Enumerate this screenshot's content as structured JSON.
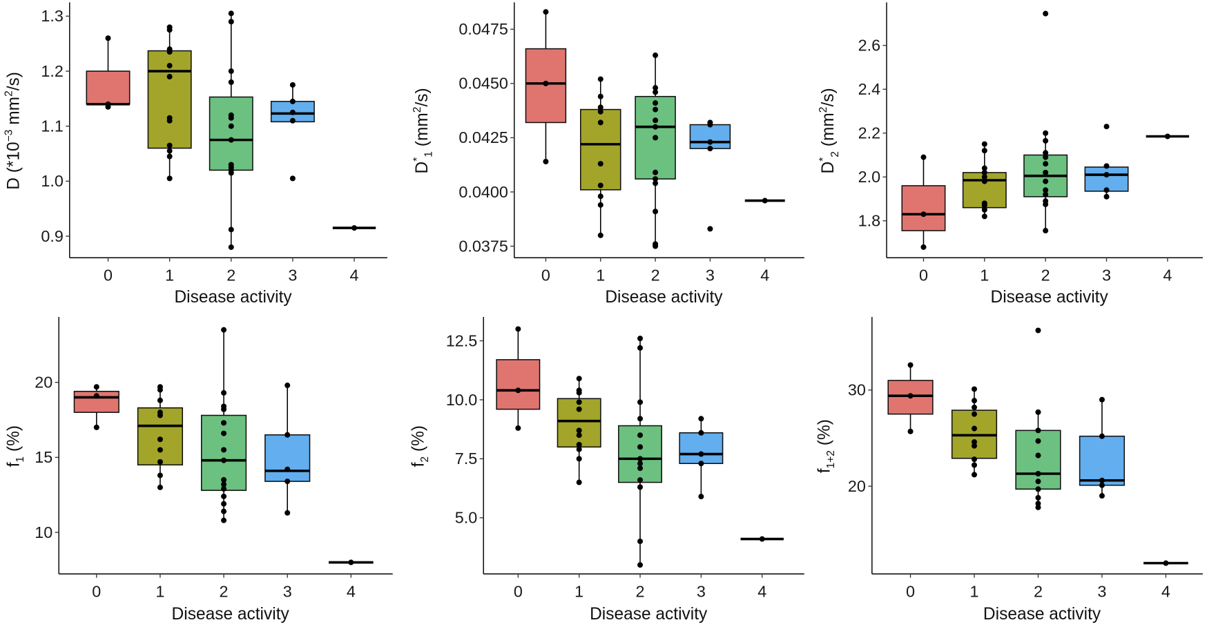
{
  "colors": {
    "0": "#E07570",
    "1": "#A3A52A",
    "2": "#6CC180",
    "3": "#62AEEE",
    "4": "#000000"
  },
  "chart_data": [
    {
      "type": "box",
      "title": "",
      "xlabel": "Disease activity",
      "ylabel_parts": [
        {
          "t": "D  (*10",
          "s": ""
        },
        {
          "t": "−3",
          "s": "sup"
        },
        {
          "t": " mm",
          "s": ""
        },
        {
          "t": "2",
          "s": "sup"
        },
        {
          "t": "/s)",
          "s": ""
        }
      ],
      "categories": [
        "0",
        "1",
        "2",
        "3",
        "4"
      ],
      "yticks": [
        "0.9",
        "1.0",
        "1.1",
        "1.2",
        "1.3"
      ],
      "ylim": [
        0.865,
        1.325
      ],
      "groups": [
        {
          "q1": 1.14,
          "median": 1.14,
          "q3": 1.2,
          "lo": 1.14,
          "hi": 1.26,
          "points": [
            1.26,
            1.14,
            1.135
          ]
        },
        {
          "q1": 1.06,
          "median": 1.2,
          "q3": 1.237,
          "lo": 1.005,
          "hi": 1.28,
          "points": [
            1.28,
            1.275,
            1.24,
            1.235,
            1.21,
            1.19,
            1.115,
            1.11,
            1.065,
            1.055,
            1.045,
            1.005
          ]
        },
        {
          "q1": 1.02,
          "median": 1.075,
          "q3": 1.153,
          "lo": 0.88,
          "hi": 1.305,
          "points": [
            1.305,
            1.29,
            1.2,
            1.18,
            1.12,
            1.115,
            1.1,
            1.075,
            1.03,
            1.025,
            1.02,
            1.015,
            0.912,
            0.88
          ]
        },
        {
          "q1": 1.108,
          "median": 1.123,
          "q3": 1.145,
          "lo": 1.108,
          "hi": 1.175,
          "points": [
            1.175,
            1.145,
            1.125,
            1.11,
            1.005
          ]
        },
        {
          "q1": 0.915,
          "median": 0.915,
          "q3": 0.915,
          "lo": 0.915,
          "hi": 0.915,
          "points": [
            0.915
          ]
        }
      ]
    },
    {
      "type": "box",
      "title": "",
      "xlabel": "Disease activity",
      "ylabel_parts": [
        {
          "t": "D",
          "s": ""
        },
        {
          "t": "*",
          "s": "sup"
        },
        {
          "t": "1",
          "s": "sub"
        },
        {
          "t": " (mm",
          "s": ""
        },
        {
          "t": "2",
          "s": "sup"
        },
        {
          "t": "/s)",
          "s": ""
        }
      ],
      "categories": [
        "0",
        "1",
        "2",
        "3",
        "4"
      ],
      "yticks": [
        "0.0375",
        "0.0400",
        "0.0425",
        "0.0450",
        "0.0475"
      ],
      "ylim": [
        0.037,
        0.0487
      ],
      "groups": [
        {
          "q1": 0.0432,
          "median": 0.045,
          "q3": 0.0466,
          "lo": 0.0414,
          "hi": 0.0483,
          "points": [
            0.0483,
            0.045,
            0.0414
          ]
        },
        {
          "q1": 0.0401,
          "median": 0.0422,
          "q3": 0.0438,
          "lo": 0.038,
          "hi": 0.0452,
          "points": [
            0.0452,
            0.0444,
            0.0439,
            0.0437,
            0.0432,
            0.0413,
            0.0403,
            0.0398,
            0.0394,
            0.038
          ]
        },
        {
          "q1": 0.0406,
          "median": 0.043,
          "q3": 0.0444,
          "lo": 0.0375,
          "hi": 0.0463,
          "points": [
            0.0463,
            0.0448,
            0.0446,
            0.0441,
            0.0438,
            0.0433,
            0.043,
            0.0425,
            0.0409,
            0.0406,
            0.0404,
            0.0391,
            0.0376,
            0.0375
          ]
        },
        {
          "q1": 0.042,
          "median": 0.0423,
          "q3": 0.0431,
          "lo": 0.042,
          "hi": 0.0432,
          "points": [
            0.0432,
            0.0431,
            0.0423,
            0.042,
            0.0383
          ]
        },
        {
          "q1": 0.0396,
          "median": 0.0396,
          "q3": 0.0396,
          "lo": 0.0396,
          "hi": 0.0396,
          "points": [
            0.0396
          ]
        }
      ]
    },
    {
      "type": "box",
      "title": "",
      "xlabel": "Disease activity",
      "ylabel_parts": [
        {
          "t": "D",
          "s": ""
        },
        {
          "t": "*",
          "s": "sup"
        },
        {
          "t": "2",
          "s": "sub"
        },
        {
          "t": " (mm",
          "s": ""
        },
        {
          "t": "2",
          "s": "sup"
        },
        {
          "t": "/s)",
          "s": ""
        }
      ],
      "categories": [
        "0",
        "1",
        "2",
        "3",
        "4"
      ],
      "yticks": [
        "1.8",
        "2.0",
        "2.2",
        "2.4",
        "2.6"
      ],
      "ylim": [
        1.65,
        2.77
      ],
      "groups": [
        {
          "q1": 1.755,
          "median": 1.83,
          "q3": 1.96,
          "lo": 1.68,
          "hi": 2.09,
          "points": [
            2.09,
            1.83,
            1.68
          ]
        },
        {
          "q1": 1.86,
          "median": 1.985,
          "q3": 2.02,
          "lo": 1.82,
          "hi": 2.15,
          "points": [
            2.15,
            2.12,
            2.04,
            2.02,
            2.0,
            1.98,
            1.88,
            1.87,
            1.85,
            1.82
          ]
        },
        {
          "q1": 1.91,
          "median": 2.005,
          "q3": 2.1,
          "lo": 1.755,
          "hi": 2.2,
          "points": [
            2.745,
            2.2,
            2.165,
            2.11,
            2.09,
            2.06,
            2.02,
            1.98,
            1.94,
            1.92,
            1.89,
            1.875,
            1.755
          ]
        },
        {
          "q1": 1.935,
          "median": 2.01,
          "q3": 2.045,
          "lo": 1.91,
          "hi": 2.045,
          "points": [
            2.23,
            2.05,
            2.01,
            1.94,
            1.91
          ]
        },
        {
          "q1": 2.185,
          "median": 2.185,
          "q3": 2.185,
          "lo": 2.185,
          "hi": 2.185,
          "points": [
            2.185
          ]
        }
      ]
    },
    {
      "type": "box",
      "title": "",
      "xlabel": "Disease activity",
      "ylabel_parts": [
        {
          "t": "f",
          "s": ""
        },
        {
          "t": "1",
          "s": "sub"
        },
        {
          "t": " (%)",
          "s": ""
        }
      ],
      "categories": [
        "0",
        "1",
        "2",
        "3",
        "4"
      ],
      "yticks": [
        "10",
        "15",
        "20"
      ],
      "ylim": [
        7.5,
        24
      ],
      "groups": [
        {
          "q1": 18.0,
          "median": 19.0,
          "q3": 19.4,
          "lo": 17.0,
          "hi": 19.7,
          "points": [
            19.7,
            19.1,
            17.0
          ]
        },
        {
          "q1": 14.5,
          "median": 17.1,
          "q3": 18.3,
          "lo": 13.0,
          "hi": 19.7,
          "points": [
            19.7,
            19.5,
            18.8,
            18.0,
            17.8,
            16.2,
            15.5,
            14.7,
            13.8,
            13.0
          ]
        },
        {
          "q1": 12.8,
          "median": 14.8,
          "q3": 17.8,
          "lo": 10.8,
          "hi": 23.5,
          "points": [
            23.5,
            19.3,
            18.4,
            18.2,
            17.3,
            16.6,
            15.5,
            14.8,
            13.5,
            13.2,
            12.9,
            12.4,
            11.9,
            11.4,
            10.8
          ]
        },
        {
          "q1": 13.4,
          "median": 14.1,
          "q3": 16.5,
          "lo": 11.3,
          "hi": 19.8,
          "points": [
            19.8,
            16.5,
            14.2,
            13.4,
            11.3
          ]
        },
        {
          "q1": 8.0,
          "median": 8.0,
          "q3": 8.0,
          "lo": 8.0,
          "hi": 8.0,
          "points": [
            8.0
          ]
        }
      ]
    },
    {
      "type": "box",
      "title": "",
      "xlabel": "Disease activity",
      "ylabel_parts": [
        {
          "t": "f",
          "s": ""
        },
        {
          "t": "2",
          "s": "sub"
        },
        {
          "t": " (%)",
          "s": ""
        }
      ],
      "categories": [
        "0",
        "1",
        "2",
        "3",
        "4"
      ],
      "yticks": [
        "5.0",
        "7.5",
        "10.0",
        "12.5"
      ],
      "ylim": [
        2.8,
        13.4
      ],
      "groups": [
        {
          "q1": 9.6,
          "median": 10.4,
          "q3": 11.7,
          "lo": 8.8,
          "hi": 13.0,
          "points": [
            13.0,
            10.4,
            8.8
          ]
        },
        {
          "q1": 8.0,
          "median": 9.1,
          "q3": 10.05,
          "lo": 6.5,
          "hi": 10.9,
          "points": [
            10.9,
            10.4,
            10.3,
            9.9,
            9.6,
            8.7,
            8.5,
            8.1,
            7.9,
            7.5,
            6.5
          ]
        },
        {
          "q1": 6.5,
          "median": 7.5,
          "q3": 8.9,
          "lo": 3.0,
          "hi": 12.6,
          "points": [
            12.6,
            12.2,
            9.9,
            9.2,
            8.5,
            8.0,
            7.5,
            7.3,
            7.1,
            6.6,
            6.3,
            4.0,
            3.0
          ]
        },
        {
          "q1": 7.3,
          "median": 7.7,
          "q3": 8.6,
          "lo": 5.9,
          "hi": 9.2,
          "points": [
            9.2,
            8.6,
            7.7,
            7.3,
            5.9
          ]
        },
        {
          "q1": 4.1,
          "median": 4.1,
          "q3": 4.1,
          "lo": 4.1,
          "hi": 4.1,
          "points": [
            4.1
          ]
        }
      ]
    },
    {
      "type": "box",
      "title": "",
      "xlabel": "Disease activity",
      "ylabel_parts": [
        {
          "t": "f",
          "s": ""
        },
        {
          "t": "1+2",
          "s": "sub"
        },
        {
          "t": " (%)",
          "s": ""
        }
      ],
      "categories": [
        "0",
        "1",
        "2",
        "3",
        "4"
      ],
      "yticks": [
        "20",
        "30"
      ],
      "ylim": [
        11.5,
        37
      ],
      "groups": [
        {
          "q1": 27.5,
          "median": 29.4,
          "q3": 31.0,
          "lo": 25.7,
          "hi": 32.6,
          "points": [
            32.6,
            29.4,
            25.7
          ]
        },
        {
          "q1": 22.9,
          "median": 25.3,
          "q3": 27.9,
          "lo": 21.2,
          "hi": 30.1,
          "points": [
            30.1,
            28.9,
            28.2,
            27.5,
            26.0,
            24.6,
            24.2,
            22.8,
            22.2,
            21.2
          ]
        },
        {
          "q1": 19.7,
          "median": 21.3,
          "q3": 25.8,
          "lo": 17.8,
          "hi": 27.7,
          "points": [
            36.2,
            27.7,
            25.8,
            24.7,
            23.2,
            21.3,
            20.5,
            19.7,
            18.8,
            18.2,
            17.8
          ]
        },
        {
          "q1": 20.1,
          "median": 20.6,
          "q3": 25.2,
          "lo": 19.0,
          "hi": 29.0,
          "points": [
            29.0,
            25.2,
            20.6,
            20.1,
            19.0
          ]
        },
        {
          "q1": 12.0,
          "median": 12.0,
          "q3": 12.0,
          "lo": 12.0,
          "hi": 12.0,
          "points": [
            12.0
          ]
        }
      ]
    }
  ]
}
